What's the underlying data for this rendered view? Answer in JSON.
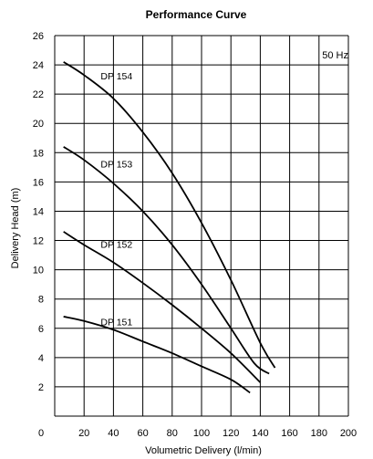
{
  "chart_data": {
    "type": "line",
    "title": "Performance Curve",
    "xlabel": "Volumetric Delivery (l/min)",
    "ylabel": "Delivery Head (m)",
    "xlim": [
      0,
      200
    ],
    "ylim": [
      0,
      26
    ],
    "xticks": [
      0,
      20,
      40,
      60,
      80,
      100,
      120,
      140,
      160,
      180,
      200
    ],
    "yticks": [
      2,
      4,
      6,
      8,
      10,
      12,
      14,
      16,
      18,
      20,
      22,
      24,
      26
    ],
    "grid": true,
    "annotation": "50 Hz",
    "series": [
      {
        "name": "DP 154",
        "label_at": [
          40,
          23.0
        ],
        "points": [
          [
            6,
            24.2
          ],
          [
            20,
            23.3
          ],
          [
            40,
            21.7
          ],
          [
            60,
            19.4
          ],
          [
            80,
            16.6
          ],
          [
            100,
            13.2
          ],
          [
            120,
            9.3
          ],
          [
            140,
            5.0
          ],
          [
            150,
            3.3
          ]
        ]
      },
      {
        "name": "DP 153",
        "label_at": [
          40,
          17.0
        ],
        "points": [
          [
            6,
            18.4
          ],
          [
            20,
            17.5
          ],
          [
            40,
            15.9
          ],
          [
            60,
            14.0
          ],
          [
            80,
            11.7
          ],
          [
            100,
            9.0
          ],
          [
            120,
            6.0
          ],
          [
            136,
            3.6
          ],
          [
            146,
            2.9
          ]
        ]
      },
      {
        "name": "DP 152",
        "label_at": [
          40,
          11.5
        ],
        "points": [
          [
            6,
            12.6
          ],
          [
            20,
            11.7
          ],
          [
            40,
            10.5
          ],
          [
            60,
            9.1
          ],
          [
            80,
            7.6
          ],
          [
            100,
            6.0
          ],
          [
            120,
            4.3
          ],
          [
            140,
            2.3
          ]
        ]
      },
      {
        "name": "DP 151",
        "label_at": [
          40,
          6.2
        ],
        "points": [
          [
            6,
            6.8
          ],
          [
            20,
            6.5
          ],
          [
            40,
            5.9
          ],
          [
            60,
            5.1
          ],
          [
            80,
            4.3
          ],
          [
            100,
            3.4
          ],
          [
            120,
            2.5
          ],
          [
            133,
            1.6
          ]
        ]
      }
    ]
  }
}
